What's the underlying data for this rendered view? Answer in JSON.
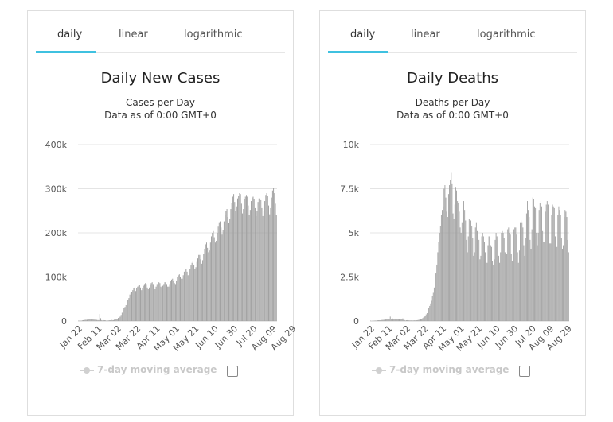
{
  "panels": [
    {
      "tabs": [
        {
          "label": "daily"
        },
        {
          "label": "linear"
        },
        {
          "label": "logarithmic"
        }
      ],
      "active_tab": "daily",
      "title": "Daily New Cases",
      "subtitle1": "Cases per Day",
      "subtitle2": "Data as of 0:00 GMT+0",
      "legend_label": "7-day moving average",
      "accent_color": "#3fc1e0",
      "bar_color": "#9e9e9e"
    },
    {
      "tabs": [
        {
          "label": "daily"
        },
        {
          "label": "linear"
        },
        {
          "label": "logarithmic"
        }
      ],
      "active_tab": "daily",
      "title": "Daily Deaths",
      "subtitle1": "Deaths per Day",
      "subtitle2": "Data as of 0:00 GMT+0",
      "legend_label": "7-day moving average",
      "accent_color": "#3fc1e0",
      "bar_color": "#9e9e9e"
    }
  ],
  "chart_data": [
    {
      "type": "bar",
      "title": "Daily New Cases",
      "ylim": [
        0,
        400000
      ],
      "yticks": [
        0,
        100000,
        200000,
        300000,
        400000
      ],
      "ytick_labels": [
        "0",
        "100k",
        "200k",
        "300k",
        "400k"
      ],
      "xtick_labels": [
        "Jan 22",
        "Feb 11",
        "Mar 02",
        "Mar 22",
        "Apr 11",
        "May 01",
        "May 21",
        "Jun 10",
        "Jun 30",
        "Jul 20",
        "Aug 09",
        "Aug 29"
      ],
      "x_start": "Jan 22",
      "interval_days": 20,
      "grid": true,
      "values": [
        600,
        600,
        700,
        800,
        1500,
        1900,
        2100,
        2900,
        2800,
        3000,
        3500,
        3700,
        3900,
        3800,
        3200,
        3700,
        3300,
        3100,
        2700,
        2600,
        2100,
        2100,
        16000,
        6500,
        2000,
        1200,
        1900,
        1700,
        1500,
        900,
        1000,
        1400,
        1500,
        1800,
        2700,
        2000,
        2000,
        3000,
        3900,
        4600,
        4000,
        7000,
        8000,
        10000,
        14000,
        19000,
        25000,
        30000,
        32000,
        36000,
        40000,
        48000,
        52000,
        60000,
        64000,
        66000,
        70000,
        74000,
        76000,
        68000,
        74000,
        78000,
        80000,
        82000,
        76000,
        70000,
        74000,
        80000,
        84000,
        86000,
        84000,
        76000,
        72000,
        76000,
        82000,
        86000,
        88000,
        84000,
        78000,
        72000,
        78000,
        84000,
        88000,
        88000,
        86000,
        78000,
        74000,
        80000,
        84000,
        88000,
        88000,
        84000,
        78000,
        78000,
        84000,
        90000,
        94000,
        96000,
        92000,
        86000,
        84000,
        92000,
        100000,
        104000,
        106000,
        100000,
        96000,
        96000,
        104000,
        112000,
        116000,
        118000,
        112000,
        104000,
        108000,
        118000,
        126000,
        132000,
        136000,
        128000,
        118000,
        122000,
        134000,
        142000,
        150000,
        150000,
        140000,
        130000,
        138000,
        152000,
        164000,
        174000,
        178000,
        166000,
        156000,
        160000,
        178000,
        192000,
        200000,
        204000,
        190000,
        178000,
        182000,
        200000,
        214000,
        224000,
        226000,
        212000,
        196000,
        206000,
        226000,
        240000,
        250000,
        254000,
        236000,
        222000,
        232000,
        254000,
        268000,
        282000,
        288000,
        270000,
        250000,
        260000,
        278000,
        284000,
        290000,
        288000,
        266000,
        244000,
        254000,
        276000,
        282000,
        286000,
        282000,
        262000,
        240000,
        252000,
        272000,
        280000,
        282000,
        276000,
        256000,
        238000,
        250000,
        270000,
        278000,
        280000,
        274000,
        256000,
        238000,
        250000,
        272000,
        286000,
        290000,
        284000,
        262000,
        242000,
        256000,
        280000,
        296000,
        302000,
        290000,
        266000,
        240000
      ]
    },
    {
      "type": "bar",
      "title": "Daily Deaths",
      "ylim": [
        0,
        10000
      ],
      "yticks": [
        0,
        2500,
        5000,
        7500,
        10000
      ],
      "ytick_labels": [
        "0",
        "2.5k",
        "5k",
        "7.5k",
        "10k"
      ],
      "xtick_labels": [
        "Jan 22",
        "Feb 11",
        "Mar 02",
        "Mar 22",
        "Apr 11",
        "May 01",
        "May 21",
        "Jun 10",
        "Jun 30",
        "Jul 20",
        "Aug 09",
        "Aug 29"
      ],
      "x_start": "Jan 22",
      "interval_days": 20,
      "grid": true,
      "values": [
        17,
        0,
        8,
        16,
        14,
        26,
        25,
        26,
        38,
        43,
        46,
        45,
        57,
        64,
        66,
        73,
        73,
        86,
        89,
        97,
        108,
        97,
        254,
        121,
        143,
        142,
        105,
        98,
        136,
        114,
        106,
        98,
        115,
        118,
        109,
        97,
        150,
        71,
        52,
        29,
        44,
        47,
        35,
        42,
        31,
        38,
        31,
        30,
        31,
        38,
        37,
        46,
        46,
        58,
        72,
        85,
        96,
        120,
        158,
        200,
        250,
        300,
        380,
        450,
        560,
        720,
        860,
        1000,
        1150,
        1400,
        1600,
        1900,
        2300,
        2700,
        3200,
        3900,
        4500,
        5000,
        5400,
        6000,
        6300,
        6500,
        7500,
        7700,
        7000,
        6200,
        5900,
        7200,
        7700,
        8000,
        8400,
        7800,
        6100,
        5800,
        6600,
        7600,
        7400,
        6800,
        6700,
        6200,
        5300,
        5000,
        5600,
        6300,
        6800,
        6300,
        5700,
        4600,
        3900,
        4800,
        5800,
        6100,
        5700,
        5400,
        4700,
        3700,
        3900,
        5300,
        5600,
        5100,
        4800,
        4600,
        3500,
        3700,
        4800,
        5000,
        4800,
        4500,
        3900,
        3300,
        3300,
        4300,
        4800,
        4800,
        4300,
        4200,
        3400,
        3200,
        3500,
        4600,
        5000,
        4800,
        4600,
        3700,
        3300,
        3900,
        5000,
        5100,
        5000,
        4700,
        3900,
        3300,
        3800,
        5200,
        5300,
        5000,
        4900,
        3800,
        3400,
        3800,
        5200,
        5300,
        5300,
        4900,
        3900,
        3300,
        4000,
        5600,
        5700,
        5600,
        5300,
        4300,
        3700,
        4700,
        6100,
        6800,
        6300,
        5900,
        4600,
        4100,
        5200,
        7000,
        6900,
        6500,
        6400,
        5000,
        4300,
        5000,
        6300,
        6700,
        6800,
        6500,
        5100,
        4500,
        4500,
        6200,
        6600,
        6800,
        6600,
        5100,
        4400,
        4400,
        6000,
        6600,
        6500,
        6400,
        4800,
        4200,
        4200,
        6000,
        6500,
        6300,
        6000,
        4700,
        4100,
        4300,
        5900,
        6300,
        6200,
        5900,
        4600,
        3900
      ]
    }
  ]
}
